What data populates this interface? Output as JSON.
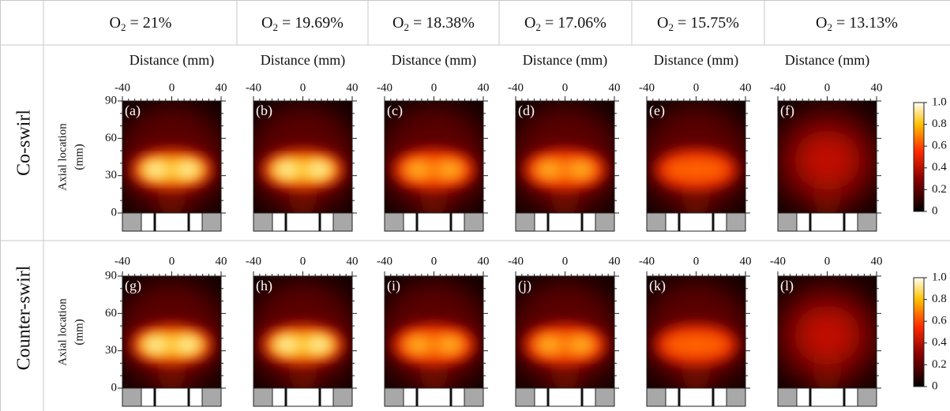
{
  "columns": [
    {
      "base": "O",
      "sub": "2",
      "rest": " = 21%"
    },
    {
      "base": "O",
      "sub": "2",
      "rest": " = 19.69%"
    },
    {
      "base": "O",
      "sub": "2",
      "rest": " = 18.38%"
    },
    {
      "base": "O",
      "sub": "2",
      "rest": " = 17.06%"
    },
    {
      "base": "O",
      "sub": "2",
      "rest": " = 15.75%"
    },
    {
      "base": "O",
      "sub": "2",
      "rest": " = 13.13%"
    }
  ],
  "rows": [
    {
      "label": "Co-swirl",
      "panels": [
        "(a)",
        "(b)",
        "(c)",
        "(d)",
        "(e)",
        "(f)"
      ]
    },
    {
      "label": "Counter-swirl",
      "panels": [
        "(g)",
        "(h)",
        "(i)",
        "(j)",
        "(k)",
        "(l)"
      ]
    }
  ],
  "x_axis": {
    "title": "Distance (mm)",
    "ticks": [
      "-40",
      "0",
      "40"
    ]
  },
  "y_axis": {
    "title": [
      "Axial location",
      "(mm)"
    ],
    "ticks": [
      "0",
      "30",
      "60",
      "90"
    ]
  },
  "colorbar": {
    "ticks": [
      "0",
      "0.2",
      "0.4",
      "0.6",
      "0.8",
      "1.0"
    ]
  }
}
